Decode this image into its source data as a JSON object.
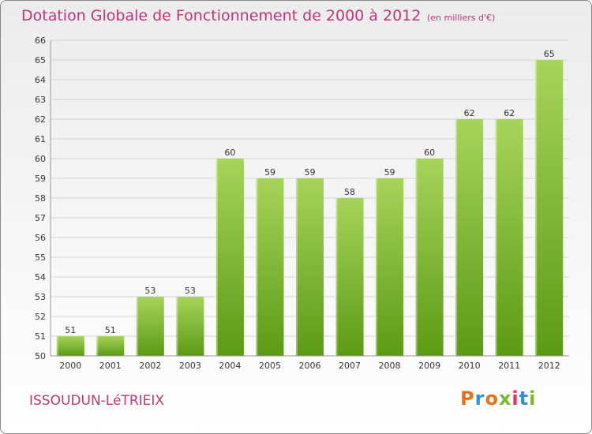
{
  "header": {
    "title": "Dotation Globale de Fonctionnement de 2000 à 2012",
    "subtitle": "(en milliers d'€)"
  },
  "footer": {
    "town": "ISSOUDUN-LéTRIEIX",
    "logo": "Proxiti"
  },
  "colors": {
    "title": "#c0347a",
    "bar_light": "#a6d45a",
    "bar_dark": "#5c9a14",
    "grid": "#d4d4d4"
  },
  "chart_data": {
    "type": "bar",
    "categories": [
      "2000",
      "2001",
      "2002",
      "2003",
      "2004",
      "2005",
      "2006",
      "2007",
      "2008",
      "2009",
      "2010",
      "2011",
      "2012"
    ],
    "values": [
      51,
      51,
      53,
      53,
      60,
      59,
      59,
      58,
      59,
      60,
      62,
      62,
      65
    ],
    "ylim": [
      50,
      66
    ],
    "yticks": [
      50,
      51,
      52,
      53,
      54,
      55,
      56,
      57,
      58,
      59,
      60,
      61,
      62,
      63,
      64,
      65,
      66
    ],
    "grid": true,
    "data_labels": true
  }
}
